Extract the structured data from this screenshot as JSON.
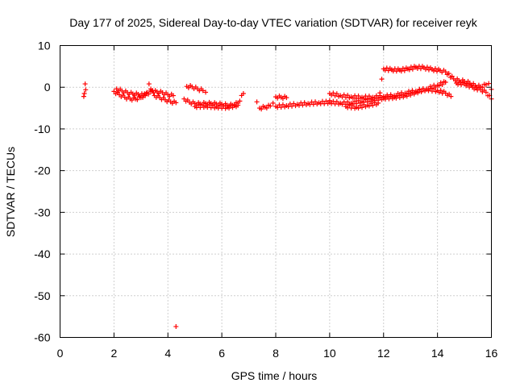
{
  "chart_data": {
    "type": "scatter",
    "title": "Day 177 of 2025, Sidereal Day-to-day VTEC variation (SDTVAR) for receiver reyk",
    "xlabel": "GPS time / hours",
    "ylabel": "SDTVAR / TECUs",
    "xlim": [
      0,
      16
    ],
    "ylim": [
      -60,
      10
    ],
    "xticks": [
      0,
      2,
      4,
      6,
      8,
      10,
      12,
      14,
      16
    ],
    "yticks": [
      10,
      0,
      -10,
      -20,
      -30,
      -40,
      -50,
      -60
    ],
    "grid": true,
    "marker": "+",
    "color": "#ff0000",
    "series": [
      {
        "name": "SDTVAR",
        "points": [
          [
            0.88,
            -2.2
          ],
          [
            0.9,
            -1.5
          ],
          [
            0.93,
            0.8
          ],
          [
            0.95,
            -0.6
          ],
          [
            4.3,
            -57.4
          ],
          [
            2.0,
            -1.0
          ],
          [
            2.2,
            -1.8
          ],
          [
            2.4,
            -2.4
          ],
          [
            2.6,
            -2.8
          ],
          [
            2.8,
            -2.8
          ],
          [
            3.0,
            -2.5
          ],
          [
            3.2,
            -1.5
          ],
          [
            3.3,
            0.8
          ],
          [
            3.5,
            -2.0
          ],
          [
            3.7,
            -2.5
          ],
          [
            3.9,
            -3.0
          ],
          [
            4.1,
            -3.5
          ],
          [
            4.3,
            -3.7
          ],
          [
            2.1,
            -0.4
          ],
          [
            2.3,
            -0.9
          ],
          [
            2.5,
            -1.3
          ],
          [
            2.7,
            -1.6
          ],
          [
            2.9,
            -1.7
          ],
          [
            3.1,
            -1.9
          ],
          [
            3.4,
            -1.0
          ],
          [
            3.6,
            -1.1
          ],
          [
            3.8,
            -1.3
          ],
          [
            4.0,
            -1.8
          ],
          [
            4.2,
            -2.0
          ],
          [
            4.7,
            0.2
          ],
          [
            4.9,
            0.1
          ],
          [
            5.1,
            -0.4
          ],
          [
            5.3,
            -0.8
          ],
          [
            5.4,
            -1.2
          ],
          [
            4.6,
            -2.8
          ],
          [
            4.8,
            -3.6
          ],
          [
            5.0,
            -3.9
          ],
          [
            5.2,
            -4.0
          ],
          [
            5.4,
            -3.9
          ],
          [
            5.6,
            -3.9
          ],
          [
            5.8,
            -4.0
          ],
          [
            6.0,
            -4.1
          ],
          [
            6.2,
            -4.3
          ],
          [
            6.4,
            -4.3
          ],
          [
            6.6,
            -3.8
          ],
          [
            6.8,
            -1.5
          ],
          [
            5.0,
            -4.6
          ],
          [
            5.4,
            -4.5
          ],
          [
            5.8,
            -4.7
          ],
          [
            6.2,
            -4.8
          ],
          [
            6.6,
            -4.3
          ],
          [
            7.3,
            -3.5
          ],
          [
            7.4,
            -5.0
          ],
          [
            7.6,
            -4.8
          ],
          [
            7.8,
            -4.5
          ],
          [
            7.9,
            -3.8
          ],
          [
            8.0,
            -2.3
          ],
          [
            8.2,
            -2.4
          ],
          [
            8.4,
            -2.5
          ],
          [
            8.0,
            -4.6
          ],
          [
            8.4,
            -4.4
          ],
          [
            8.8,
            -4.1
          ],
          [
            9.2,
            -3.9
          ],
          [
            9.6,
            -3.7
          ],
          [
            10.0,
            -3.6
          ],
          [
            10.4,
            -3.8
          ],
          [
            10.8,
            -3.8
          ],
          [
            11.2,
            -3.4
          ],
          [
            11.6,
            -3.0
          ],
          [
            12.0,
            -2.6
          ],
          [
            12.4,
            -2.4
          ],
          [
            12.8,
            -2.0
          ],
          [
            13.2,
            -1.2
          ],
          [
            13.6,
            -0.4
          ],
          [
            14.0,
            0.5
          ],
          [
            14.3,
            1.2
          ],
          [
            10.0,
            -1.5
          ],
          [
            10.4,
            -2.0
          ],
          [
            10.8,
            -2.3
          ],
          [
            11.2,
            -2.4
          ],
          [
            11.6,
            -2.4
          ],
          [
            12.0,
            -2.2
          ],
          [
            12.4,
            -2.0
          ],
          [
            12.8,
            -1.4
          ],
          [
            13.2,
            -0.9
          ],
          [
            13.6,
            -0.5
          ],
          [
            14.0,
            -0.8
          ],
          [
            14.3,
            -1.4
          ],
          [
            14.5,
            -2.2
          ],
          [
            10.0,
            -3.2
          ],
          [
            10.6,
            -4.6
          ],
          [
            11.0,
            -4.8
          ],
          [
            11.4,
            -4.3
          ],
          [
            11.8,
            -3.8
          ],
          [
            12.0,
            4.4
          ],
          [
            12.3,
            4.2
          ],
          [
            12.6,
            4.1
          ],
          [
            12.9,
            4.4
          ],
          [
            13.2,
            4.8
          ],
          [
            13.5,
            4.7
          ],
          [
            13.8,
            4.3
          ],
          [
            14.1,
            4.0
          ],
          [
            14.3,
            3.7
          ],
          [
            14.6,
            2.0
          ],
          [
            14.8,
            1.6
          ],
          [
            15.0,
            1.4
          ],
          [
            15.2,
            1.0
          ],
          [
            15.4,
            0.4
          ],
          [
            15.6,
            0.1
          ],
          [
            15.8,
            0.6
          ],
          [
            15.9,
            0.9
          ],
          [
            16.0,
            -0.5
          ],
          [
            14.7,
            1.0
          ],
          [
            15.0,
            0.8
          ],
          [
            15.3,
            0.0
          ],
          [
            15.6,
            -0.6
          ],
          [
            15.8,
            -1.2
          ],
          [
            16.0,
            -2.8
          ]
        ]
      }
    ]
  }
}
